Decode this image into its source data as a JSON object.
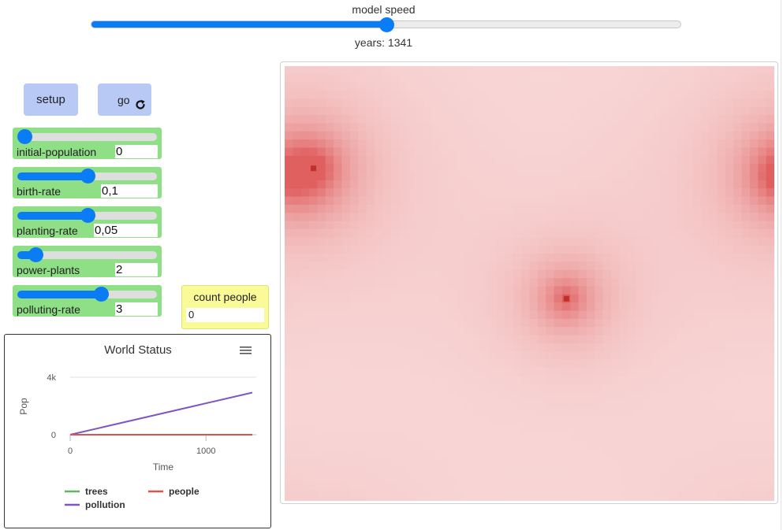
{
  "speed": {
    "label": "model speed",
    "value": 0.5
  },
  "ticks": {
    "label": "years: 1341"
  },
  "buttons": {
    "setup_label": "setup",
    "go_label": "go",
    "go_icon": "forever-icon"
  },
  "sliders": [
    {
      "name": "initial-population",
      "display": "0",
      "value": 0,
      "fraction": 0.0
    },
    {
      "name": "birth-rate",
      "display": "0,1",
      "value": 0.1,
      "fraction": 0.5
    },
    {
      "name": "planting-rate",
      "display": "0,05",
      "value": 0.05,
      "fraction": 0.5
    },
    {
      "name": "power-plants",
      "display": "2",
      "value": 2,
      "fraction": 0.13
    },
    {
      "name": "polluting-rate",
      "display": "3",
      "value": 3,
      "fraction": 0.6
    }
  ],
  "monitor": {
    "label": "count people",
    "value": "0"
  },
  "plot": {
    "title": "World Status",
    "menu_icon": "hamburger-menu-icon"
  },
  "chart_data": {
    "type": "line",
    "title": "World Status",
    "xlabel": "Time",
    "ylabel": "Pop",
    "xlim": [
      0,
      1341
    ],
    "ylim": [
      0,
      4000
    ],
    "x_ticks": [
      {
        "value": 0,
        "label": "0"
      },
      {
        "value": 1000,
        "label": "1000"
      }
    ],
    "y_ticks": [
      {
        "value": 0,
        "label": "0"
      },
      {
        "value": 4000,
        "label": "4k"
      }
    ],
    "legend_position": "bottom",
    "series": [
      {
        "name": "trees",
        "color": "#5cb85c",
        "x": [
          0,
          1341
        ],
        "y": [
          0,
          0
        ]
      },
      {
        "name": "people",
        "color": "#d9534f",
        "x": [
          0,
          1341
        ],
        "y": [
          0,
          0
        ]
      },
      {
        "name": "pollution",
        "color": "#7e57c2",
        "x": [
          0,
          1341
        ],
        "y": [
          0,
          2930
        ]
      }
    ]
  },
  "view": {
    "background_color": "#f9dbdb",
    "pollution_color": "#e06060",
    "power_plant_color": "#c0302a"
  }
}
